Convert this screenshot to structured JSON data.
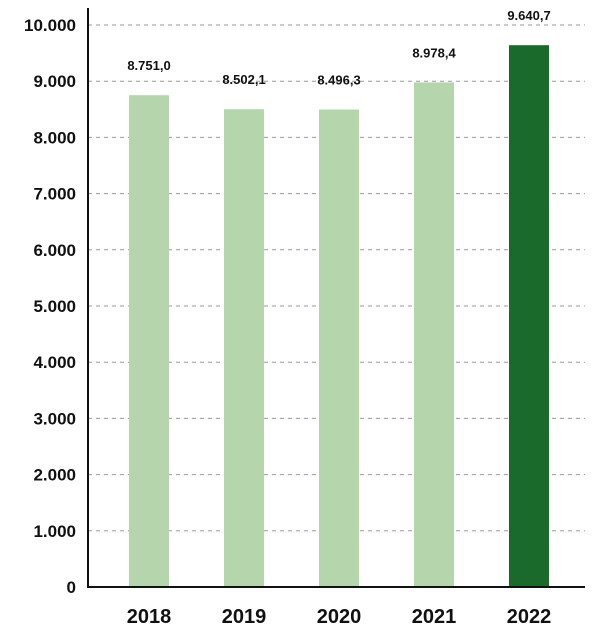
{
  "chart_data": {
    "type": "bar",
    "categories": [
      "2018",
      "2019",
      "2020",
      "2021",
      "2022"
    ],
    "values": [
      8751.0,
      8502.1,
      8496.3,
      8978.4,
      9640.7
    ],
    "data_labels": [
      "8.751,0",
      "8.502,1",
      "8.496,3",
      "8.978,4",
      "9.640,7"
    ],
    "title": "",
    "xlabel": "",
    "ylabel": "",
    "ylim": [
      0,
      10000
    ],
    "yticks": [
      0,
      1000,
      2000,
      3000,
      4000,
      5000,
      6000,
      7000,
      8000,
      9000,
      10000
    ],
    "ytick_labels": [
      "0",
      "1.000",
      "2.000",
      "3.000",
      "4.000",
      "5.000",
      "6.000",
      "7.000",
      "8.000",
      "9.000",
      "10.000"
    ],
    "grid": "horizontal-dashed",
    "legend": "none",
    "colors": {
      "bar": "#b5d6ad",
      "highlight_bar": "#1a6b2b",
      "highlight_category": "2022",
      "grid": "#9a9a9a",
      "axis": "#111111"
    }
  }
}
